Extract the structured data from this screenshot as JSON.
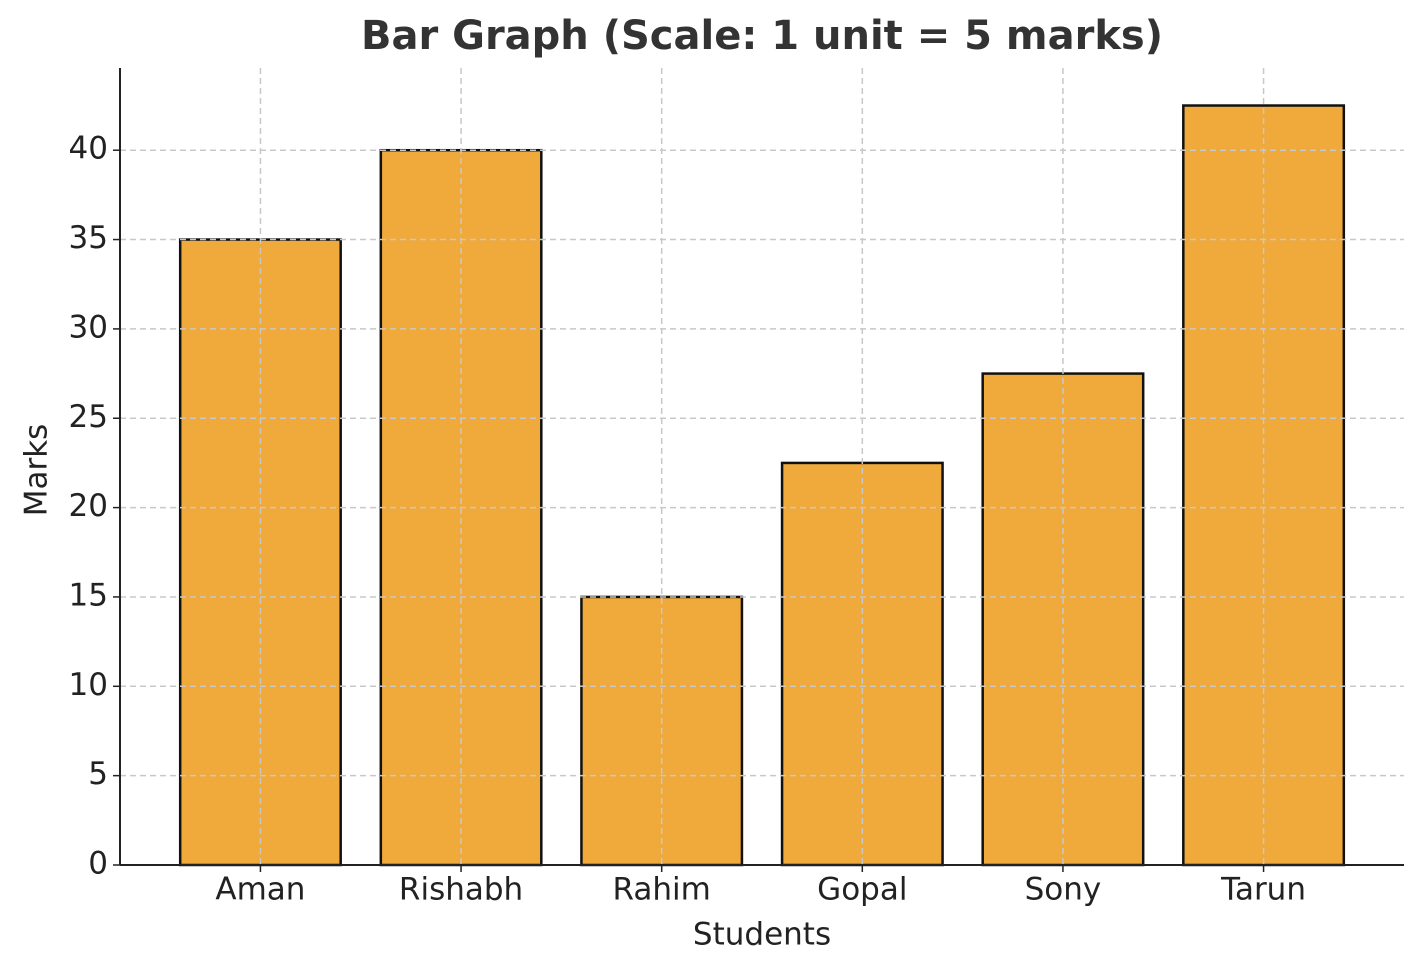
{
  "chart_data": {
    "type": "bar",
    "title": "Bar Graph (Scale: 1 unit = 5 marks)",
    "x_label": "Students",
    "y_label": "Marks",
    "categories": [
      "Aman",
      "Rishabh",
      "Rahim",
      "Gopal",
      "Sony",
      "Tarun"
    ],
    "values": [
      35,
      40,
      15,
      22.5,
      27.5,
      42.5
    ],
    "color": "#f0a93b",
    "ylim": [
      0,
      44.6
    ],
    "yticks": [
      0,
      5,
      10,
      15,
      20,
      25,
      30,
      35,
      40
    ],
    "grid": true
  }
}
